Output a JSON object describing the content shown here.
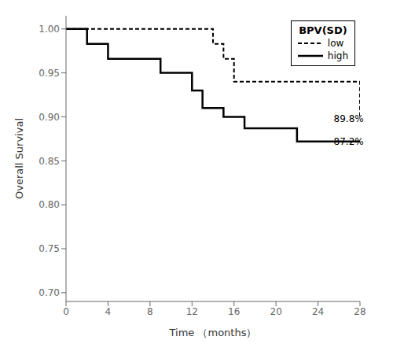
{
  "chart_data": {
    "type": "step",
    "xlabel": "Time （months）",
    "ylabel": "Overall Survival",
    "xlim": [
      0,
      28
    ],
    "ylim": [
      0.69,
      1.015
    ],
    "xticks": [
      0,
      4,
      8,
      12,
      16,
      20,
      24,
      28
    ],
    "yticks": [
      {
        "value": 0.7,
        "label": "0.70"
      },
      0.75,
      {
        "value": 0.8,
        "label": "0.80"
      },
      0.85,
      {
        "value": 0.9,
        "label": "0.90"
      },
      0.95,
      {
        "value": 1.0,
        "label": "1.00"
      }
    ],
    "grid": false,
    "legend": "upper right",
    "legend_title": "BPV(SD)",
    "series": [
      {
        "name": "low",
        "color": "#000000",
        "line_style": "dashed",
        "x": [
          0,
          1,
          13,
          14,
          15,
          16,
          25,
          28
        ],
        "values": [
          1.0,
          1.0,
          1.0,
          0.983,
          0.966,
          0.94,
          0.94,
          0.898
        ]
      },
      {
        "name": "high",
        "color": "#000000",
        "line_style": "solid",
        "x": [
          0,
          2,
          4,
          9,
          12,
          13,
          15,
          17,
          22,
          25,
          28
        ],
        "values": [
          1.0,
          0.983,
          0.966,
          0.95,
          0.93,
          0.91,
          0.9,
          0.887,
          0.872,
          0.872,
          0.872
        ]
      }
    ],
    "annotations": [
      {
        "text": "89.8%",
        "x": 25.5,
        "y": 0.898,
        "color": "#000000"
      },
      {
        "text": "87.2%",
        "x": 25.5,
        "y": 0.872,
        "color": "#000000"
      }
    ]
  }
}
